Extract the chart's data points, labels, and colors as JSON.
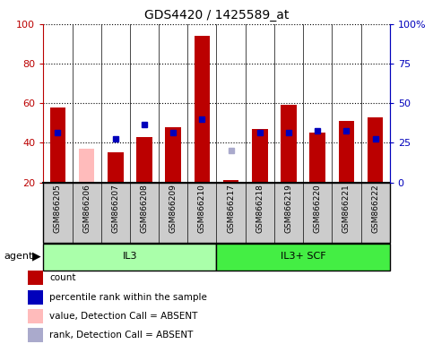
{
  "title": "GDS4420 / 1425589_at",
  "samples": [
    "GSM866205",
    "GSM866206",
    "GSM866207",
    "GSM866208",
    "GSM866209",
    "GSM866210",
    "GSM866217",
    "GSM866218",
    "GSM866219",
    "GSM866220",
    "GSM866221",
    "GSM866222"
  ],
  "red_bars": [
    58,
    null,
    35,
    43,
    48,
    94,
    21,
    47,
    59,
    45,
    51,
    53
  ],
  "pink_bars": [
    null,
    37,
    null,
    null,
    null,
    null,
    null,
    null,
    null,
    null,
    null,
    null
  ],
  "blue_markers": [
    45,
    null,
    42,
    49,
    45,
    52,
    null,
    45,
    45,
    46,
    46,
    42
  ],
  "light_blue_markers": [
    null,
    null,
    null,
    null,
    null,
    null,
    36,
    null,
    null,
    null,
    null,
    null
  ],
  "groups": [
    {
      "label": "IL3",
      "start": 0,
      "end": 5
    },
    {
      "label": "IL3+ SCF",
      "start": 6,
      "end": 11
    }
  ],
  "ylim": [
    20,
    100
  ],
  "y_ticks_left": [
    20,
    40,
    60,
    80,
    100
  ],
  "right_tick_labels": [
    "0",
    "25",
    "50",
    "75",
    "100%"
  ],
  "right_tick_pos": [
    20,
    40,
    60,
    80,
    100
  ],
  "bar_width": 0.55,
  "red_color": "#bb0000",
  "blue_color": "#0000bb",
  "pink_color": "#ffbbbb",
  "light_blue_color": "#aaaacc",
  "group_color_il3": "#aaffaa",
  "group_color_scf": "#44ee44",
  "sample_bg_color": "#cccccc",
  "legend_labels": [
    "count",
    "percentile rank within the sample",
    "value, Detection Call = ABSENT",
    "rank, Detection Call = ABSENT"
  ],
  "legend_colors": [
    "#bb0000",
    "#0000bb",
    "#ffbbbb",
    "#aaaacc"
  ]
}
